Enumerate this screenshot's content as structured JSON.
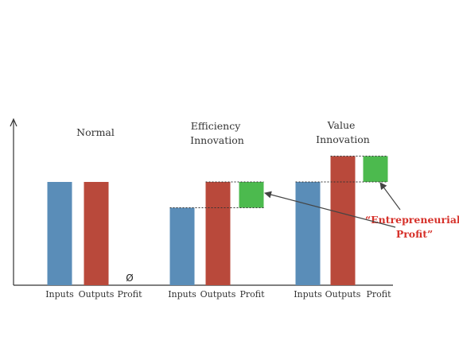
{
  "colors": {
    "inputs": "#5a8db8",
    "outputs": "#b9493b",
    "profit": "#4cba4e",
    "annotation": "#d6312a",
    "axis": "#333333"
  },
  "groups": [
    {
      "title_lines": [
        "Normal"
      ],
      "bars": [
        {
          "category": "Inputs",
          "value": 4.0
        },
        {
          "category": "Outputs",
          "value": 4.0
        },
        {
          "category": "Profit",
          "value": 0,
          "symbol": "Ø"
        }
      ]
    },
    {
      "title_lines": [
        "Efficiency",
        "Innovation"
      ],
      "bars": [
        {
          "category": "Inputs",
          "value": 3.0
        },
        {
          "category": "Outputs",
          "value": 4.0
        },
        {
          "category": "Profit",
          "value": 1.0,
          "base": 3.0
        }
      ]
    },
    {
      "title_lines": [
        "Value",
        "Innovation"
      ],
      "bars": [
        {
          "category": "Inputs",
          "value": 4.0
        },
        {
          "category": "Outputs",
          "value": 5.0
        },
        {
          "category": "Profit",
          "value": 1.0,
          "base": 4.0
        }
      ]
    }
  ],
  "annotation": {
    "lines": [
      "“Entrepreneurial",
      "Profit”"
    ],
    "points_to": [
      1,
      2
    ]
  }
}
